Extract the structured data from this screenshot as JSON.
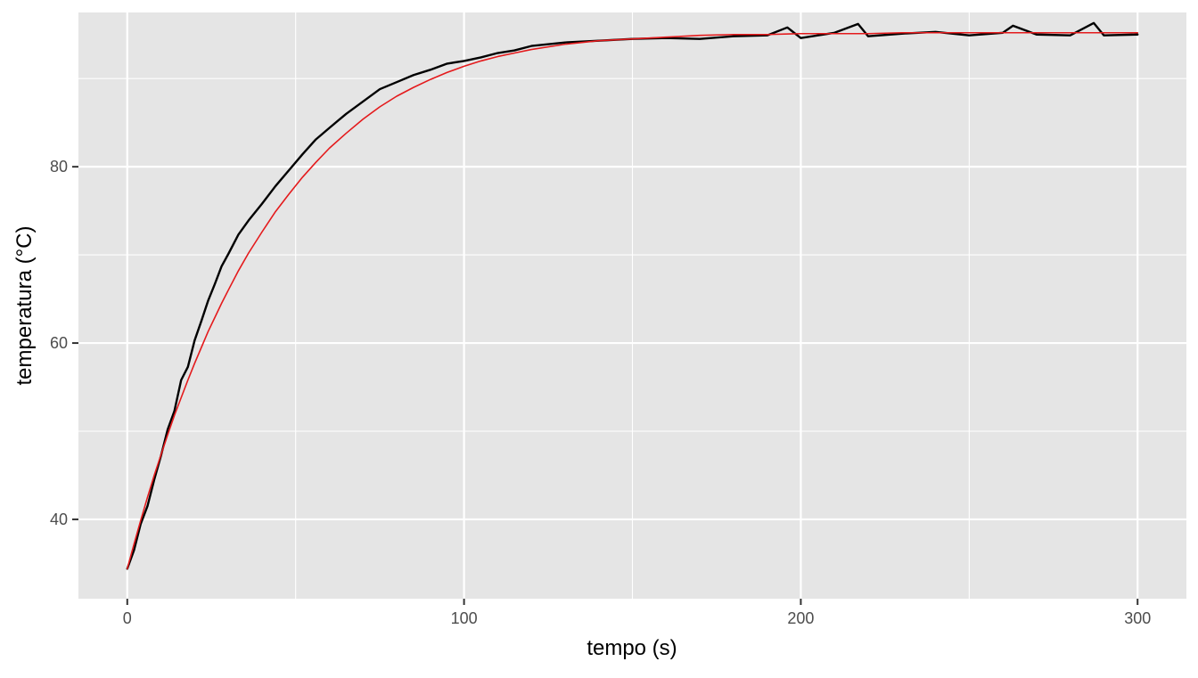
{
  "chart_data": {
    "type": "line",
    "title": "",
    "xlabel": "tempo (s)",
    "ylabel": "temperatura (°C)",
    "xlim": [
      -14.5,
      314.5
    ],
    "ylim": [
      31.0,
      97.5
    ],
    "x_ticks": [
      0,
      100,
      200,
      300
    ],
    "x_tick_labels": [
      "0",
      "100",
      "200",
      "300"
    ],
    "y_ticks": [
      40,
      60,
      80
    ],
    "y_tick_labels": [
      "40",
      "60",
      "80"
    ],
    "grid": true,
    "legend": "none",
    "series": [
      {
        "kind": "measured",
        "color": "#000000",
        "x": [
          0,
          2,
          4,
          6,
          8,
          10,
          12,
          14,
          16,
          18,
          20,
          22,
          24,
          26,
          28,
          30,
          33,
          36,
          40,
          44,
          48,
          52,
          56,
          60,
          65,
          70,
          75,
          80,
          85,
          90,
          95,
          100,
          105,
          110,
          115,
          120,
          130,
          140,
          150,
          160,
          170,
          180,
          190,
          196,
          200,
          210,
          217,
          220,
          230,
          240,
          250,
          260,
          263,
          270,
          280,
          287,
          290,
          300
        ],
        "y": [
          34.4,
          36.5,
          39.5,
          41.5,
          44.5,
          47.2,
          50.2,
          52.3,
          55.8,
          57.3,
          60.3,
          62.5,
          64.8,
          66.7,
          68.7,
          70.1,
          72.3,
          73.9,
          75.8,
          77.8,
          79.6,
          81.4,
          83.1,
          84.4,
          86.0,
          87.4,
          88.8,
          89.6,
          90.4,
          91.0,
          91.7,
          92.0,
          92.4,
          92.9,
          93.2,
          93.7,
          94.1,
          94.3,
          94.5,
          94.6,
          94.5,
          94.8,
          94.9,
          95.8,
          94.6,
          95.2,
          96.2,
          94.8,
          95.1,
          95.3,
          94.9,
          95.2,
          96.0,
          95.0,
          94.9,
          96.3,
          94.9,
          95.0
        ]
      },
      {
        "kind": "fitted",
        "color": "#e41a1c",
        "x": [
          0,
          2,
          4,
          6,
          8,
          10,
          12,
          14,
          16,
          18,
          20,
          22,
          24,
          26,
          28,
          30,
          33,
          36,
          40,
          44,
          48,
          52,
          56,
          60,
          65,
          70,
          75,
          80,
          85,
          90,
          95,
          100,
          105,
          110,
          115,
          120,
          130,
          140,
          150,
          160,
          170,
          180,
          190,
          200,
          210,
          220,
          230,
          240,
          250,
          260,
          270,
          280,
          290,
          300
        ],
        "y": [
          34.4,
          37.2,
          39.9,
          42.5,
          45.0,
          47.3,
          49.6,
          51.8,
          53.8,
          55.8,
          57.7,
          59.5,
          61.3,
          62.9,
          64.5,
          66.0,
          68.2,
          70.2,
          72.6,
          74.9,
          76.9,
          78.8,
          80.5,
          82.1,
          83.8,
          85.4,
          86.8,
          88.0,
          89.0,
          89.9,
          90.7,
          91.4,
          92.0,
          92.5,
          92.9,
          93.3,
          93.9,
          94.3,
          94.5,
          94.7,
          94.9,
          95.0,
          95.0,
          95.1,
          95.1,
          95.1,
          95.2,
          95.2,
          95.2,
          95.2,
          95.2,
          95.2,
          95.2,
          95.2
        ]
      }
    ]
  }
}
